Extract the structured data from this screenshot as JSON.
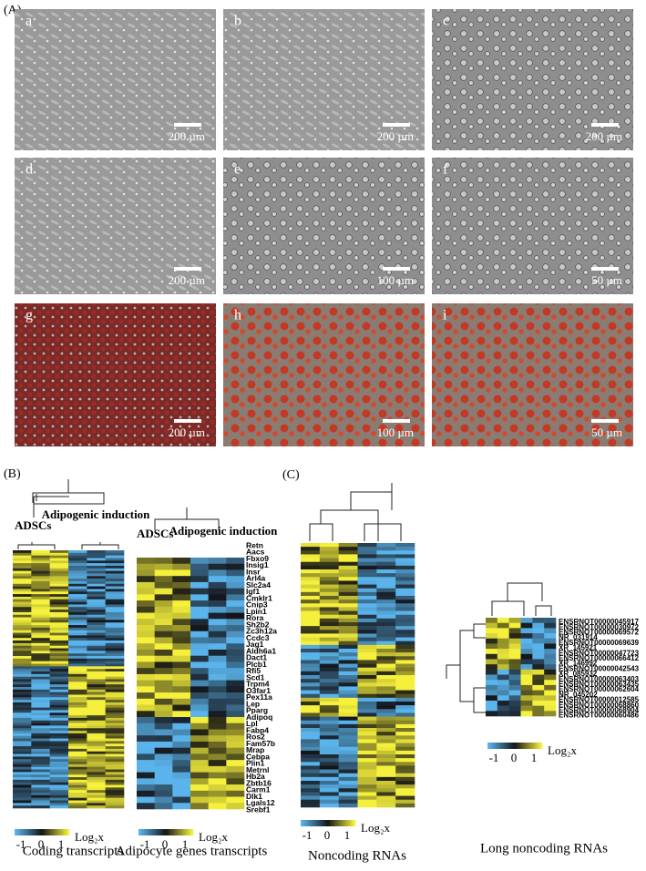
{
  "panel_a": {
    "label": "(A)",
    "images": [
      {
        "letter": "a",
        "scale": "200 µm"
      },
      {
        "letter": "b",
        "scale": "200 µm"
      },
      {
        "letter": "c",
        "scale": "200 µm"
      },
      {
        "letter": "d",
        "scale": "200 µm"
      },
      {
        "letter": "e",
        "scale": "100 µm"
      },
      {
        "letter": "f",
        "scale": "50 µm"
      },
      {
        "letter": "g",
        "scale": "200 µm"
      },
      {
        "letter": "h",
        "scale": "100 µm"
      },
      {
        "letter": "i",
        "scale": "50 µm"
      }
    ]
  },
  "panel_b": {
    "label": "(B)",
    "heatmaps": [
      {
        "groups": [
          "ADSCs",
          "Adipogenic induction"
        ],
        "caption": "Coding transcripts"
      },
      {
        "groups": [
          "ADSCs",
          "Adipogenic induction"
        ],
        "caption": "Adipocyte genes transcripts",
        "genes": [
          "Retn",
          "Aacs",
          "Fbxo9",
          "Insig1",
          "Insr",
          "Arl4a",
          "Slc2a4",
          "Igf1",
          "Cmklr1",
          "Cnip3",
          "Lpin1",
          "Rora",
          "Sh2b2",
          "Zc3h12a",
          "Ccdc3",
          "Jag1",
          "Aldh6a1",
          "Dact1",
          "Plcb1",
          "Rfi5",
          "Scd1",
          "Trpm4",
          "O3far1",
          "Pex11a",
          "Lep",
          "Pparg",
          "Adipoq",
          "Lpl",
          "Fabp4",
          "Ros2",
          "Fam57b",
          "Mrap",
          "Cebpa",
          "Plin1",
          "Metrnl",
          "Hb2a",
          "Zbtb16",
          "Carm1",
          "Dlk1",
          "Lgals12",
          "Srebf1"
        ]
      }
    ]
  },
  "panel_c": {
    "label": "(C)",
    "heatmaps": [
      {
        "caption": "Noncoding RNAs"
      },
      {
        "caption": "Long noncoding RNAs",
        "rows": [
          "ENSRNOT00000045917",
          "ENSRNOT00000030972",
          "ENSRNOT00000069572",
          "NR_031914",
          "ENSRNOT00000069639",
          "XR_145921",
          "ENSRNOT00000047723",
          "ENSRNOT00000066412",
          "XR_146992",
          "ENSRNOT00000042543",
          "XR_085932",
          "ENSRNOT00000063403",
          "ENSRNOT00000063435",
          "ENSRNOT00000062604",
          "NR_045202",
          "ENSRNOT00000012585",
          "ENSRNOT00000068860",
          "ENSRNOT00000068904",
          "ENSRNOT00000060486"
        ]
      }
    ]
  },
  "legend": {
    "ticks": [
      -1,
      0,
      1
    ],
    "label": "Log₂x"
  }
}
